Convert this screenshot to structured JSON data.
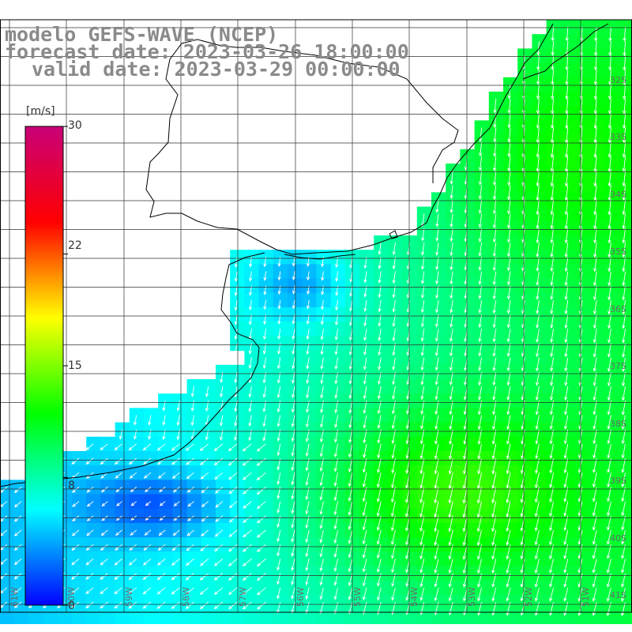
{
  "title_lines": [
    "modelo GEFS-WAVE (NCEP)",
    "forecast date: 2023-03-26 18:00:00",
    "valid date: 2023-03-29 00:00:00"
  ],
  "colorbar": {
    "unit": "[m/s]",
    "min": 0,
    "max": 30,
    "labels": [
      "30",
      "22",
      "15",
      "8",
      "0"
    ],
    "label_values": [
      30,
      22,
      15,
      8,
      0
    ],
    "colors": [
      "#0000ff",
      "#00ffff",
      "#00ff00",
      "#ffff00",
      "#ff0000",
      "#c80078"
    ]
  },
  "lat_labels": [
    "32S",
    "33S",
    "34S",
    "35S",
    "36S",
    "37S",
    "38S",
    "39S",
    "40S",
    "41S"
  ],
  "lon_labels": [
    "61W",
    "60W",
    "59W",
    "58W",
    "57W",
    "56W",
    "55W",
    "54W",
    "53W",
    "52W",
    "51W"
  ],
  "colors": {
    "land": "#ffffff",
    "grid": "#303030",
    "coast": "#000000",
    "arrow": "#ffffff",
    "title": "#8a8a8a"
  }
}
